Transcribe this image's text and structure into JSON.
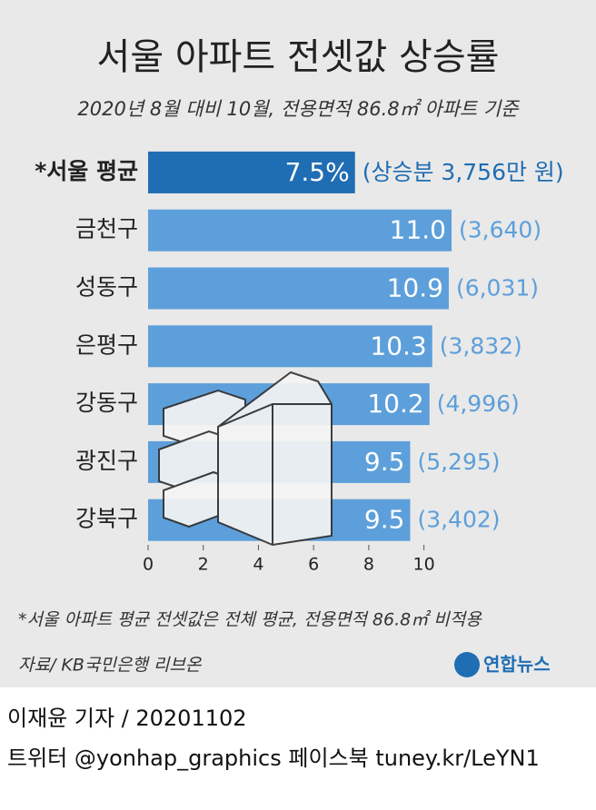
{
  "chart_data": {
    "type": "bar",
    "orientation": "horizontal",
    "title": "서울 아파트 전셋값 상승률",
    "subtitle": "2020년 8월 대비 10월, 전용면적 86.8㎡ 아파트 기준",
    "categories": [
      "*서울 평균",
      "금천구",
      "성동구",
      "은평구",
      "강동구",
      "광진구",
      "강북구"
    ],
    "values": [
      7.5,
      11.0,
      10.9,
      10.3,
      10.2,
      9.5,
      9.5
    ],
    "value_labels": [
      "7.5%",
      "11.0",
      "10.9",
      "10.3",
      "10.2",
      "9.5",
      "9.5"
    ],
    "annotations": [
      "(상승분 3,756만 원)",
      "(3,640)",
      "(6,031)",
      "(3,832)",
      "(4,996)",
      "(5,295)",
      "(3,402)"
    ],
    "colors": [
      "#1f6db3",
      "#5d9fda",
      "#5d9fda",
      "#5d9fda",
      "#5d9fda",
      "#5d9fda",
      "#5d9fda"
    ],
    "xlim": [
      0,
      11
    ],
    "xticks": [
      0,
      2,
      4,
      6,
      8,
      10
    ],
    "footnote": "*서울 아파트 평균 전셋값은 전체 평균, 전용면적 86.8㎡ 비적용",
    "source": "자료/ KB국민은행 리브온",
    "logo": "연합뉴스",
    "byline": "이재윤 기자 / 20201102",
    "social": "트위터 @yonhap_graphics  페이스북 tuney.kr/LeYN1"
  }
}
